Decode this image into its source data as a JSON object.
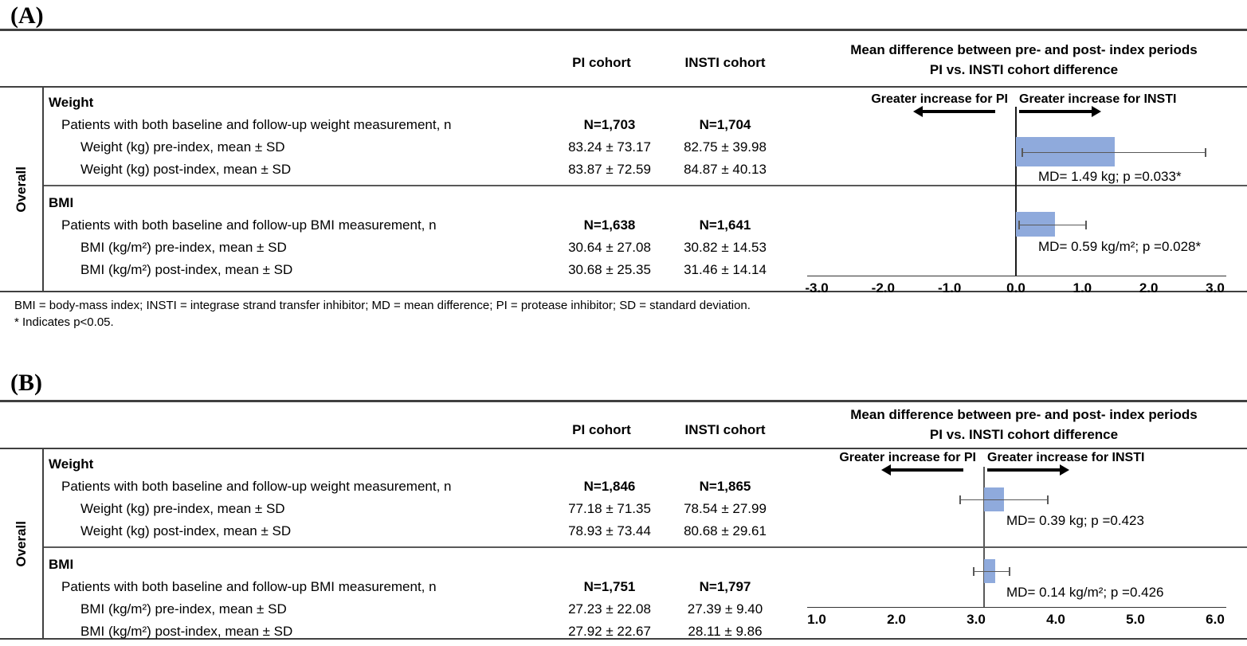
{
  "figure": {
    "footnotes": {
      "abbreviations": "BMI = body-mass index; INSTI = integrase strand transfer inhibitor; MD = mean difference; PI = protease inhibitor; SD = standard deviation.",
      "significance": "* Indicates p<0.05."
    },
    "panels": [
      {
        "letter": "(A)",
        "group_label": "Overall",
        "columns": {
          "pi": "PI cohort",
          "insti": "INSTI cohort"
        },
        "plot_title": {
          "line1": "Mean difference between pre- and post- index periods",
          "line2": "PI vs. INSTI cohort difference"
        },
        "directions": {
          "left": "Greater increase for PI",
          "right": "Greater increase for INSTI"
        },
        "sections": [
          {
            "name": "Weight",
            "rows": [
              {
                "label": "Patients with both baseline and follow-up weight measurement, n",
                "pi": "N=1,703",
                "insti": "N=1,704"
              },
              {
                "label": "Weight (kg) pre-index, mean ± SD",
                "pi": "83.24 ± 73.17",
                "insti": "82.75 ± 39.98"
              },
              {
                "label": "Weight (kg) post-index, mean ± SD",
                "pi": "83.87 ± 72.59",
                "insti": "84.87 ± 40.13"
              }
            ]
          },
          {
            "name": "BMI",
            "rows": [
              {
                "label": "Patients with both baseline and follow-up BMI measurement, n",
                "pi": "N=1,638",
                "insti": "N=1,641"
              },
              {
                "label": "BMI (kg/m²) pre-index, mean ± SD",
                "pi": "30.64 ± 27.08",
                "insti": "30.82 ± 14.53"
              },
              {
                "label": "BMI (kg/m²) post-index, mean ± SD",
                "pi": "30.68 ± 25.35",
                "insti": "31.46 ± 14.14"
              }
            ]
          }
        ]
      },
      {
        "letter": "(B)",
        "group_label": "Overall",
        "columns": {
          "pi": "PI cohort",
          "insti": "INSTI cohort"
        },
        "plot_title": {
          "line1": "Mean difference between pre- and post- index periods",
          "line2": "PI vs. INSTI cohort difference"
        },
        "directions": {
          "left": "Greater increase for PI",
          "right": "Greater increase for INSTI"
        },
        "sections": [
          {
            "name": "Weight",
            "rows": [
              {
                "label": "Patients with both baseline and follow-up weight measurement, n",
                "pi": "N=1,846",
                "insti": "N=1,865"
              },
              {
                "label": "Weight (kg) pre-index, mean ± SD",
                "pi": "77.18 ± 71.35",
                "insti": "78.54 ± 27.99"
              },
              {
                "label": "Weight (kg) post-index, mean ± SD",
                "pi": "78.93 ± 73.44",
                "insti": "80.68 ± 29.61"
              }
            ]
          },
          {
            "name": "BMI",
            "rows": [
              {
                "label": "Patients with both baseline and follow-up BMI measurement, n",
                "pi": "N=1,751",
                "insti": "N=1,797"
              },
              {
                "label": "BMI (kg/m²) pre-index, mean ± SD",
                "pi": "27.23 ± 22.08",
                "insti": "27.39 ± 9.40"
              },
              {
                "label": "BMI (kg/m²) post-index, mean ± SD",
                "pi": "27.92 ± 22.67",
                "insti": "28.11 ± 9.86"
              }
            ]
          }
        ]
      }
    ]
  },
  "chart_data": [
    {
      "type": "bar",
      "panel": "A",
      "orientation": "horizontal-forest",
      "title": "Mean difference between pre- and post- index periods PI vs. INSTI cohort difference",
      "bar_color": "#8faadc",
      "axis": {
        "min": -3.0,
        "max": 3.0,
        "reference_line": 0.0,
        "ticks": [
          "-3.0",
          "-2.0",
          "-1.0",
          "0.0",
          "1.0",
          "2.0",
          "3.0"
        ]
      },
      "bars": [
        {
          "measure": "Weight",
          "md": 1.49,
          "p": "0.033*",
          "bar_from": 0.0,
          "bar_to": 1.49,
          "ci_low": 0.1,
          "ci_high": 2.85,
          "label": "MD= 1.49 kg; p =0.033*"
        },
        {
          "measure": "BMI",
          "md": 0.59,
          "p": "0.028*",
          "bar_from": 0.0,
          "bar_to": 0.59,
          "ci_low": 0.05,
          "ci_high": 1.05,
          "label": "MD= 0.59 kg/m²; p =0.028*"
        }
      ]
    },
    {
      "type": "bar",
      "panel": "B",
      "orientation": "horizontal-forest",
      "title": "Mean difference between pre- and post- index periods PI vs. INSTI cohort difference",
      "bar_color": "#8faadc",
      "axis": {
        "min": 1.0,
        "max": 6.0,
        "reference_line": 3.1,
        "ticks": [
          "1.0",
          "2.0",
          "3.0",
          "4.0",
          "5.0",
          "6.0"
        ]
      },
      "bars": [
        {
          "measure": "Weight",
          "md": 0.39,
          "p": "0.423",
          "bar_from": 3.1,
          "bar_to": 3.35,
          "ci_low": 2.8,
          "ci_high": 3.9,
          "label": "MD= 0.39 kg; p =0.423"
        },
        {
          "measure": "BMI",
          "md": 0.14,
          "p": "0.426",
          "bar_from": 3.1,
          "bar_to": 3.24,
          "ci_low": 2.97,
          "ci_high": 3.42,
          "label": "MD= 0.14 kg/m²; p =0.426"
        }
      ]
    }
  ]
}
